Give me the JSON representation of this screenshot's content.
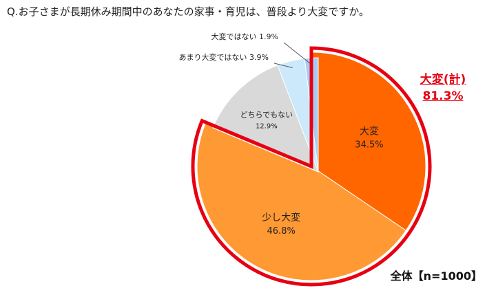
{
  "question": "Q.お子さまが長期休み期間中のあなたの家事・育児は、普段より大変ですか。",
  "summary": {
    "label": "大変(計)",
    "value": "81.3%"
  },
  "total_label": "全体【n=1000】",
  "chart_data": {
    "type": "pie",
    "start_angle_deg": 0,
    "direction": "clockwise",
    "slices": [
      {
        "label": "大変",
        "value": 34.5,
        "display": "34.5%",
        "color": "#ff6600"
      },
      {
        "label": "少し大変",
        "value": 46.8,
        "display": "46.8%",
        "color": "#ff9933"
      },
      {
        "label": "どちらでもない",
        "value": 12.9,
        "display": "12.9%",
        "color": "#d9d9d9"
      },
      {
        "label": "あまり大変ではない",
        "value": 3.9,
        "display": "3.9%",
        "color": "#cce9fb"
      },
      {
        "label": "大変ではない",
        "value": 1.9,
        "display": "1.9%",
        "color": "#a9cbf2"
      }
    ],
    "highlight_color": "#e60012"
  }
}
